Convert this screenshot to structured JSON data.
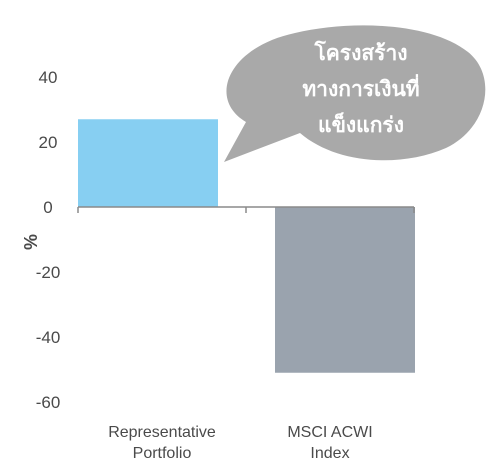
{
  "chart_data": {
    "type": "bar",
    "categories": [
      [
        "Representative",
        "Portfolio"
      ],
      [
        "MSCI ACWI",
        "Index"
      ]
    ],
    "values": [
      27,
      -51
    ],
    "bar_colors": [
      "#87cff2",
      "#9aa3ae"
    ],
    "ylabel": "%",
    "ylim": [
      -60,
      40
    ],
    "yticks": [
      "40",
      "20",
      "0",
      "-20",
      "-40",
      "-60"
    ],
    "grid": false,
    "annotation": {
      "lines": [
        "โครงสร้าง",
        "ทางการเงินที่",
        "แข็งแกร่ง"
      ],
      "fill": "#a9a9a9",
      "text_color": "#ffffff"
    }
  }
}
